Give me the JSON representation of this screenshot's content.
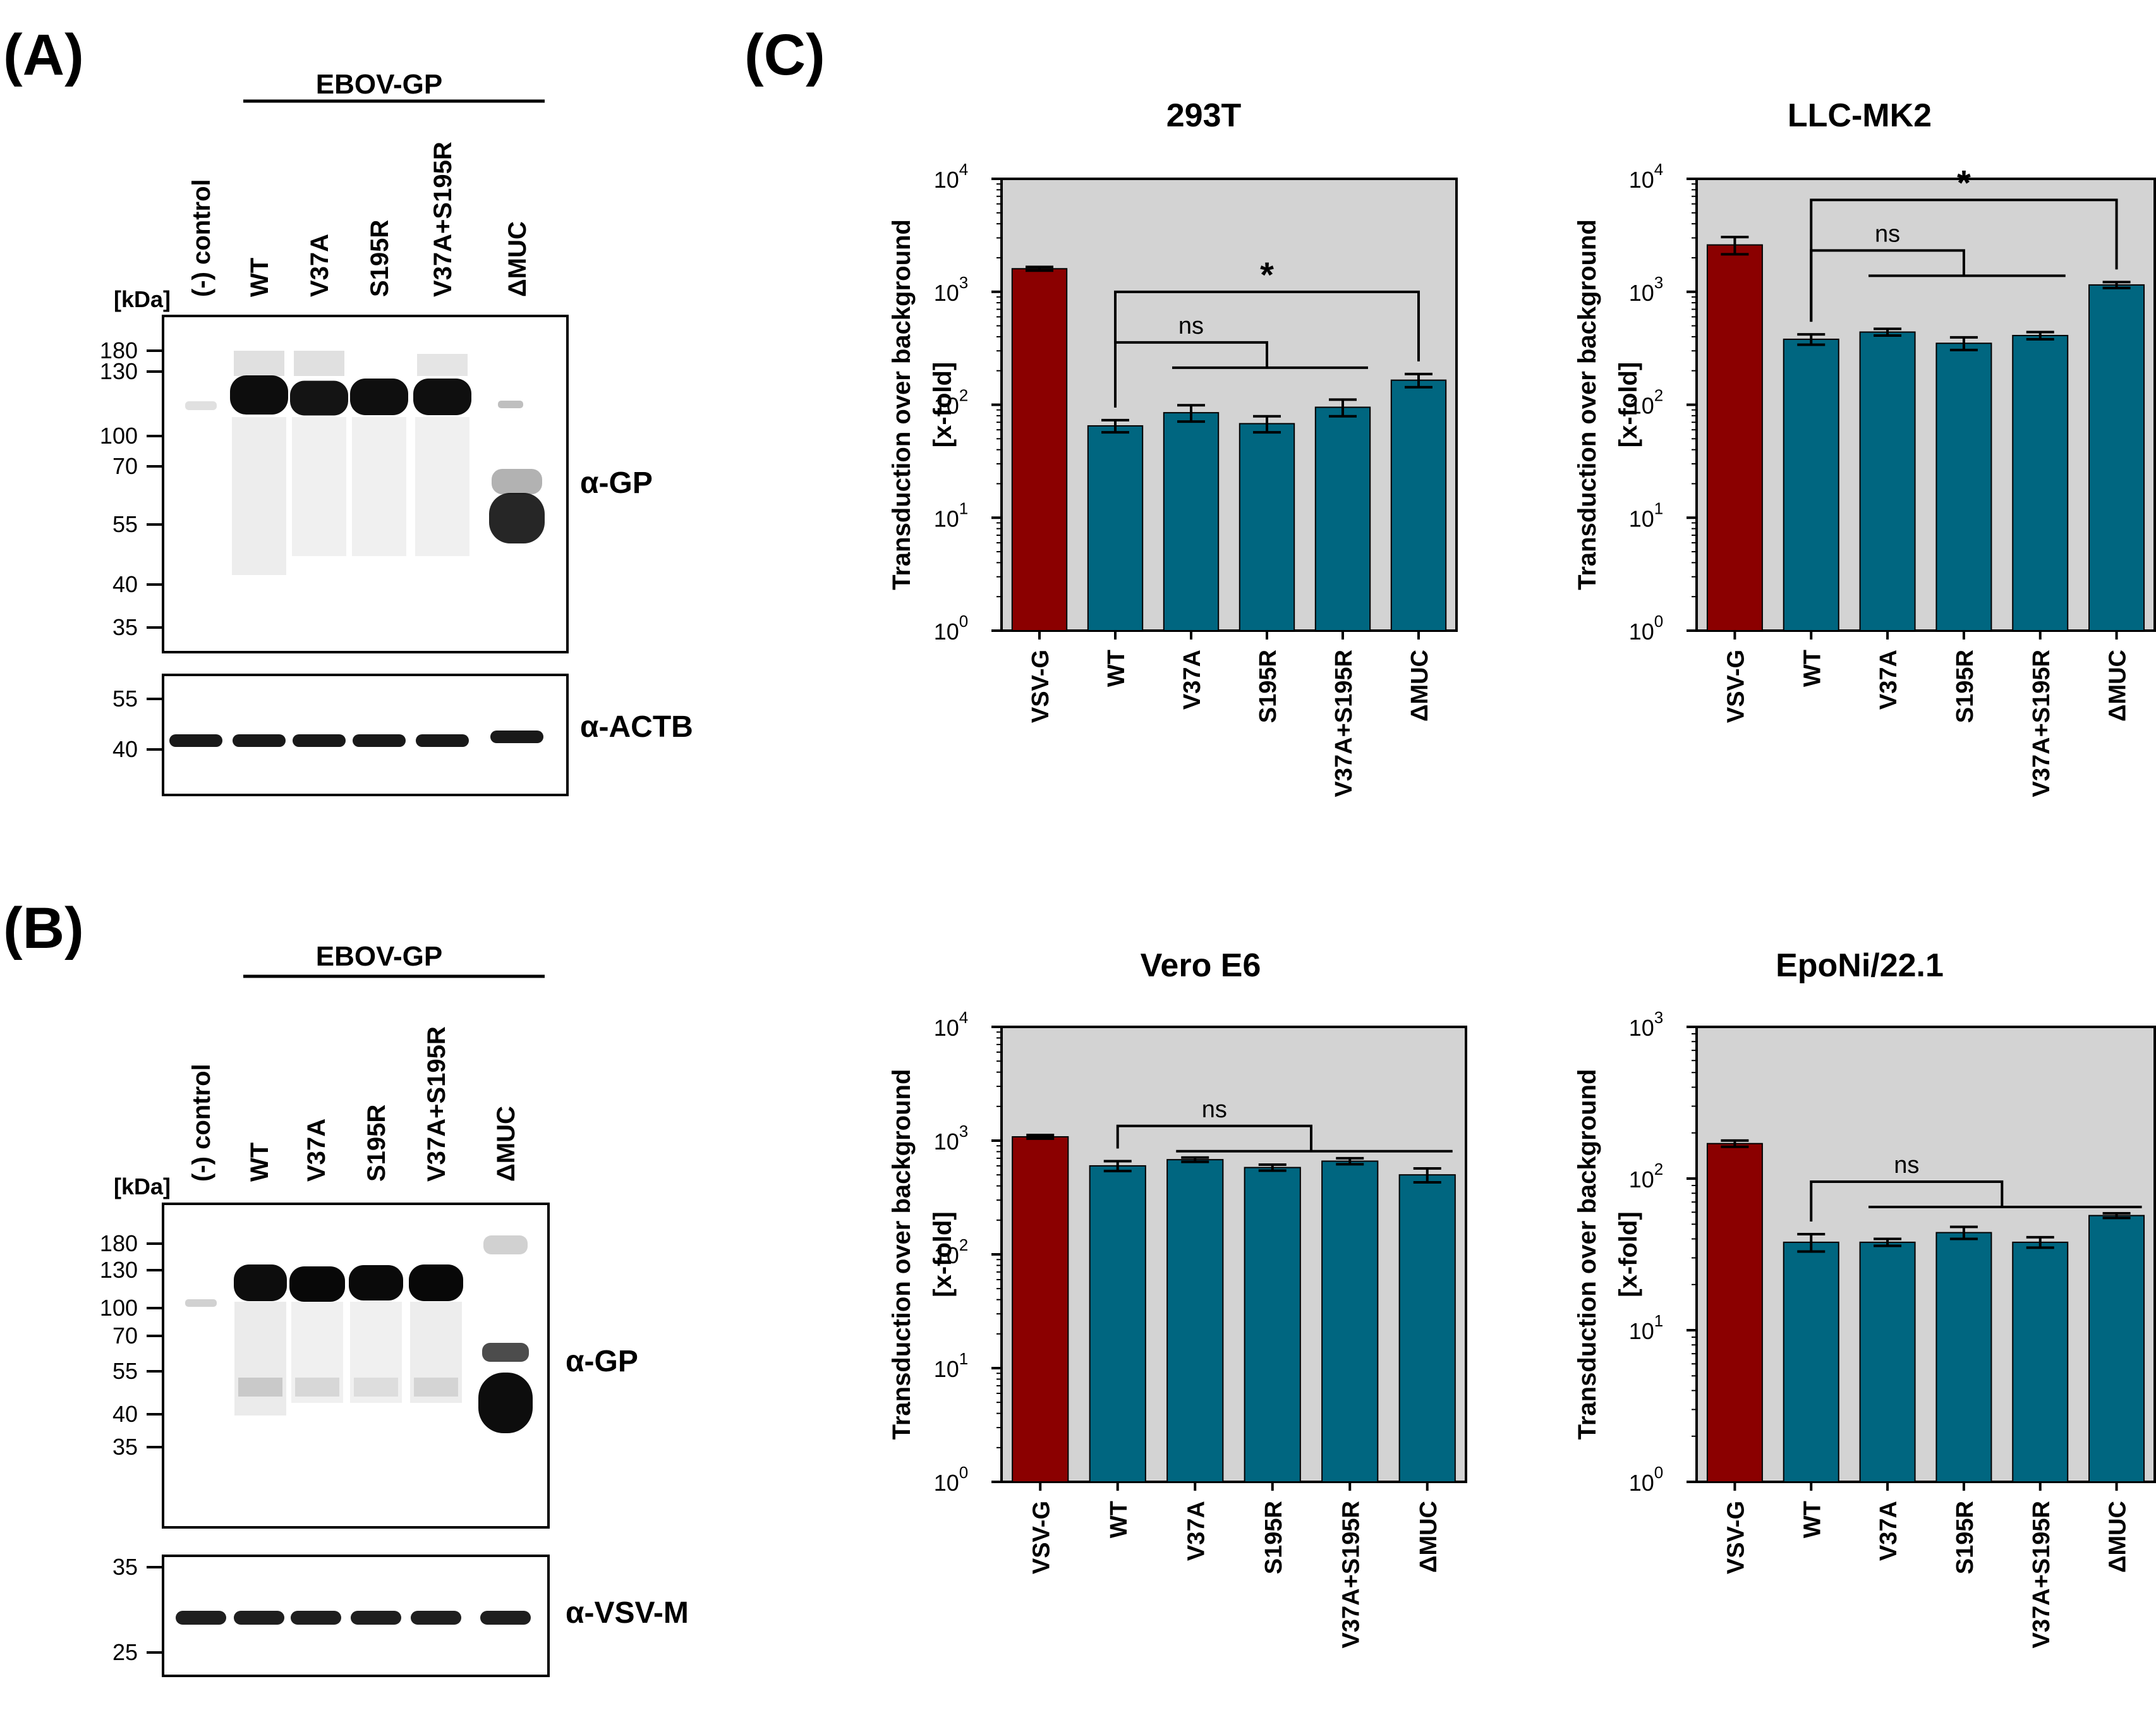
{
  "panels": {
    "A": {
      "letter": "(A)",
      "group_label": "EBOV-GP",
      "kda_label": "[kDa]",
      "lanes": [
        "(-) control",
        "WT",
        "V37A",
        "S195R",
        "V37A+S195R",
        "ΔMUC"
      ],
      "markers_gp": [
        "180",
        "130",
        "100",
        "70",
        "55",
        "40",
        "35"
      ],
      "markers_loading": [
        "55",
        "40"
      ],
      "antibody_gp": "α-GP",
      "antibody_loading": "α-ACTB"
    },
    "B": {
      "letter": "(B)",
      "group_label": "EBOV-GP",
      "kda_label": "[kDa]",
      "lanes": [
        "(-) control",
        "WT",
        "V37A",
        "S195R",
        "V37A+S195R",
        "ΔMUC"
      ],
      "markers_gp": [
        "180",
        "130",
        "100",
        "70",
        "55",
        "40",
        "35"
      ],
      "markers_loading": [
        "35",
        "25"
      ],
      "antibody_gp": "α-GP",
      "antibody_loading": "α-VSV-M"
    },
    "C": {
      "letter": "(C)"
    }
  },
  "colors": {
    "vsvg_bar": "#8b0000",
    "gp_bar": "#006680",
    "plot_bg": "#d3d3d3"
  },
  "chart_data": [
    {
      "type": "bar",
      "title": "293T",
      "ylabel": "Transduction over background",
      "ylabel2": "[x-fold]",
      "yscale": "log",
      "ylim": [
        1,
        10000
      ],
      "ytick_exponents": [
        "0",
        "1",
        "2",
        "3",
        "4"
      ],
      "tick_base": "10",
      "categories": [
        "VSV-G",
        "WT",
        "V37A",
        "S195R",
        "V37A+S195R",
        "ΔMUC"
      ],
      "values": [
        1600,
        65,
        85,
        68,
        95,
        165
      ],
      "errors": [
        60,
        8,
        14,
        11,
        16,
        22
      ],
      "significance": [
        {
          "label": "ns",
          "from": 1,
          "to_range": [
            2,
            4
          ]
        },
        {
          "label": "*",
          "from": 1,
          "to": 5
        }
      ]
    },
    {
      "type": "bar",
      "title": "LLC-MK2",
      "ylabel": "Transduction over background",
      "ylabel2": "[x-fold]",
      "yscale": "log",
      "ylim": [
        1,
        10000
      ],
      "ytick_exponents": [
        "0",
        "1",
        "2",
        "3",
        "4"
      ],
      "tick_base": "10",
      "categories": [
        "VSV-G",
        "WT",
        "V37A",
        "S195R",
        "V37A+S195R",
        "ΔMUC"
      ],
      "values": [
        2600,
        380,
        440,
        350,
        410,
        1150
      ],
      "errors": [
        450,
        40,
        30,
        45,
        30,
        70
      ],
      "significance": [
        {
          "label": "ns",
          "from": 1,
          "to_range": [
            2,
            4
          ]
        },
        {
          "label": "*",
          "from": 1,
          "to": 5
        }
      ]
    },
    {
      "type": "bar",
      "title": "Vero E6",
      "ylabel": "Transduction over background",
      "ylabel2": "[x-fold]",
      "yscale": "log",
      "ylim": [
        1,
        10000
      ],
      "ytick_exponents": [
        "0",
        "1",
        "2",
        "3",
        "4"
      ],
      "tick_base": "10",
      "categories": [
        "VSV-G",
        "WT",
        "V37A",
        "S195R",
        "V37A+S195R",
        "ΔMUC"
      ],
      "values": [
        1080,
        600,
        680,
        580,
        660,
        500
      ],
      "errors": [
        40,
        60,
        30,
        35,
        40,
        70
      ],
      "significance": [
        {
          "label": "ns",
          "from": 1,
          "to_range": [
            2,
            5
          ]
        }
      ]
    },
    {
      "type": "bar",
      "title": "EpoNi/22.1",
      "ylabel": "Transduction over background",
      "ylabel2": "[x-fold]",
      "yscale": "log",
      "ylim": [
        1,
        1000
      ],
      "ytick_exponents": [
        "0",
        "1",
        "2",
        "3"
      ],
      "tick_base": "10",
      "categories": [
        "VSV-G",
        "WT",
        "V37A",
        "S195R",
        "V37A+S195R",
        "ΔMUC"
      ],
      "values": [
        170,
        38,
        38,
        44,
        38,
        57
      ],
      "errors": [
        8,
        5,
        2,
        4,
        3,
        2
      ],
      "significance": [
        {
          "label": "ns",
          "from": 1,
          "to_range": [
            2,
            5
          ]
        }
      ]
    }
  ]
}
